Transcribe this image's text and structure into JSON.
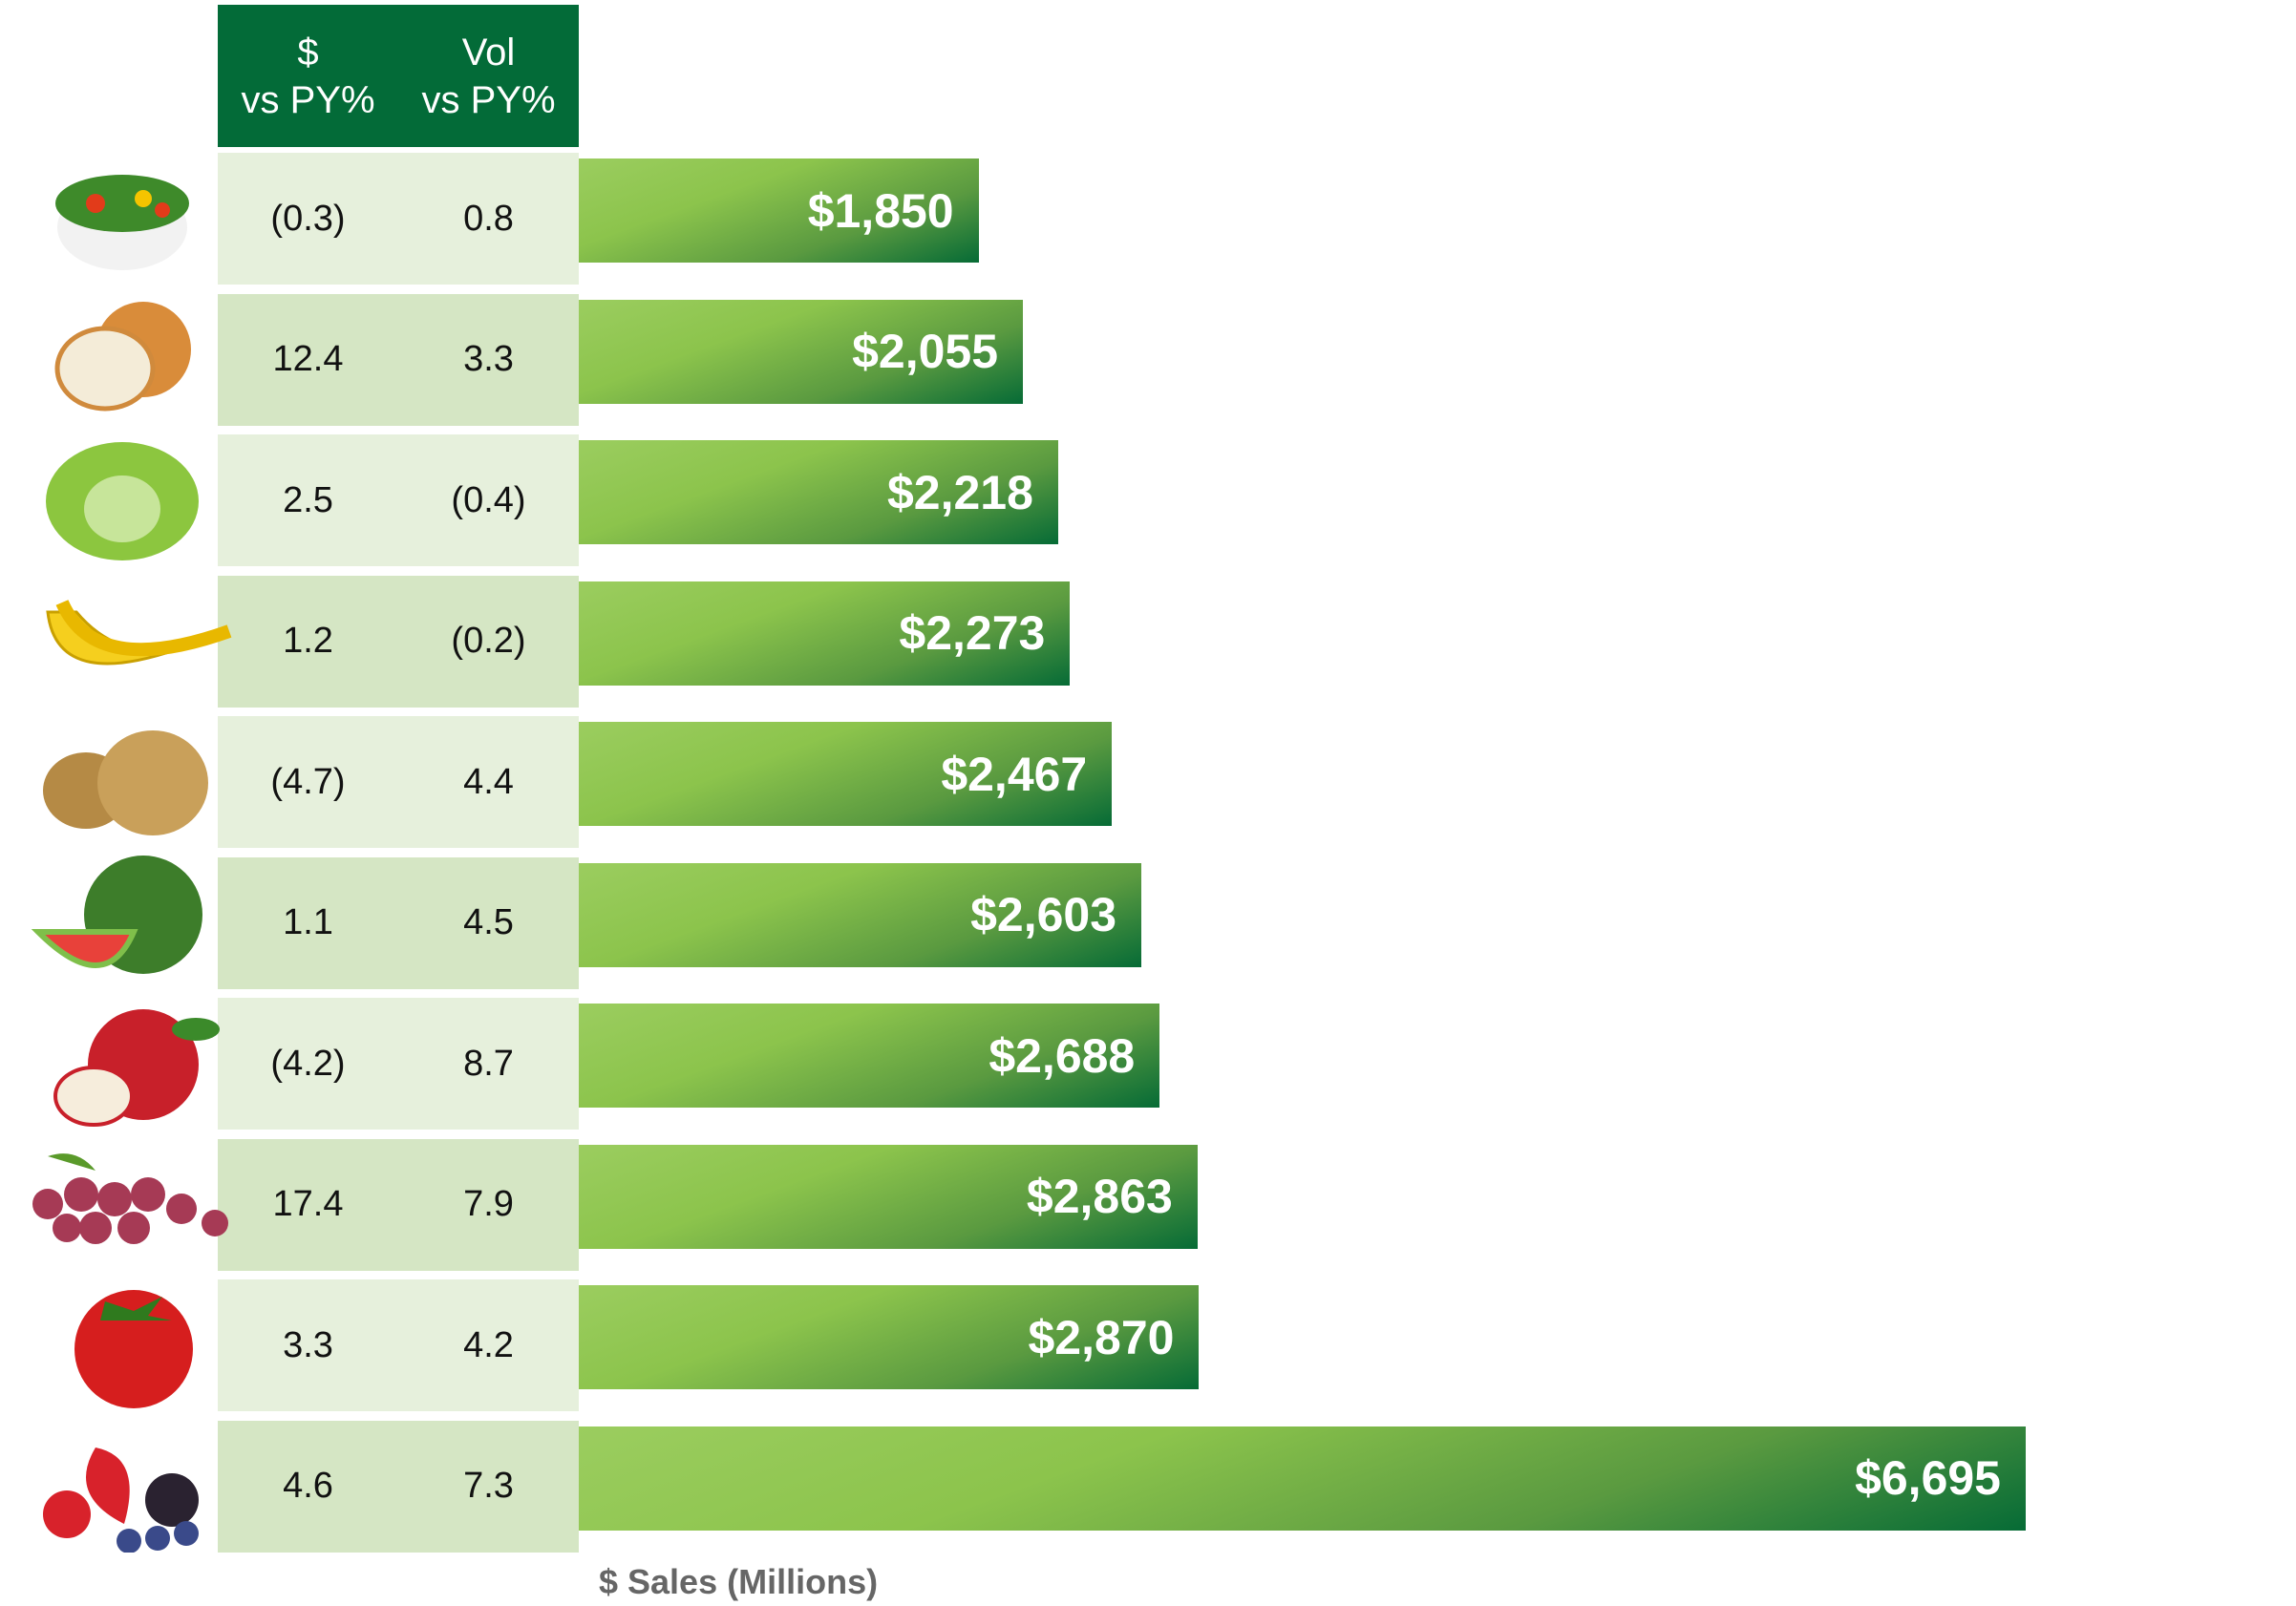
{
  "chart_data": {
    "type": "bar",
    "orientation": "horizontal",
    "xlabel": "$ Sales (Millions)",
    "table_headers": [
      [
        "$",
        "vs PY%"
      ],
      [
        "Vol",
        "vs PY%"
      ]
    ],
    "rows": [
      {
        "icon": "salad-icon",
        "dollar_vs_py": "(0.3)",
        "vol_vs_py": "0.8",
        "value": 1850,
        "label": "$1,850"
      },
      {
        "icon": "onion-icon",
        "dollar_vs_py": "12.4",
        "vol_vs_py": "3.3",
        "value": 2055,
        "label": "$2,055"
      },
      {
        "icon": "lettuce-icon",
        "dollar_vs_py": "2.5",
        "vol_vs_py": "(0.4)",
        "value": 2218,
        "label": "$2,218"
      },
      {
        "icon": "banana-icon",
        "dollar_vs_py": "1.2",
        "vol_vs_py": "(0.2)",
        "value": 2273,
        "label": "$2,273"
      },
      {
        "icon": "potato-icon",
        "dollar_vs_py": "(4.7)",
        "vol_vs_py": "4.4",
        "value": 2467,
        "label": "$2,467"
      },
      {
        "icon": "watermelon-icon",
        "dollar_vs_py": "1.1",
        "vol_vs_py": "4.5",
        "value": 2603,
        "label": "$2,603"
      },
      {
        "icon": "apple-icon",
        "dollar_vs_py": "(4.2)",
        "vol_vs_py": "8.7",
        "value": 2688,
        "label": "$2,688"
      },
      {
        "icon": "grapes-icon",
        "dollar_vs_py": "17.4",
        "vol_vs_py": "7.9",
        "value": 2863,
        "label": "$2,863"
      },
      {
        "icon": "tomato-icon",
        "dollar_vs_py": "3.3",
        "vol_vs_py": "4.2",
        "value": 2870,
        "label": "$2,870"
      },
      {
        "icon": "berries-icon",
        "dollar_vs_py": "4.6",
        "vol_vs_py": "7.3",
        "value": 6695,
        "label": "$6,695"
      }
    ],
    "colors": {
      "header": "#036b38",
      "row_light": "#e6f0dc",
      "row_dark": "#d5e6c4",
      "bar_light": "#8cc44c",
      "bar_dark": "#066b36",
      "axis_label": "#666666"
    }
  }
}
